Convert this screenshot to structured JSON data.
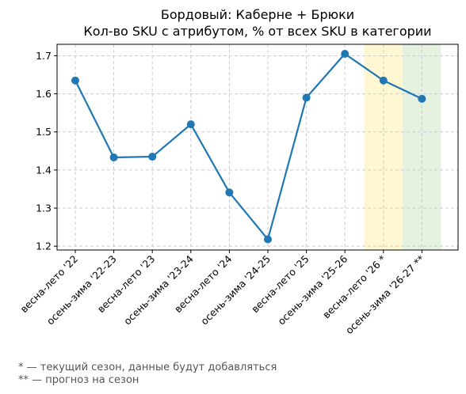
{
  "chart_data": {
    "type": "line",
    "title": "Бордовый: Каберне + Брюки",
    "subtitle": "Кол-во SKU с атрибутом, % от всех SKU в категории",
    "xlabel": "",
    "ylabel": "",
    "categories": [
      "весна-лето '22",
      "осень-зима '22-23",
      "весна-лето '23",
      "осень-зима '23-24",
      "весна-лето '24",
      "осень-зима '24-25",
      "весна-лето '25",
      "осень-зима '25-26",
      "весна-лето '26 *",
      "осень-зима '26-27 **"
    ],
    "series": [
      {
        "values": [
          1.635,
          1.433,
          1.435,
          1.52,
          1.341,
          1.218,
          1.59,
          1.705,
          1.635,
          1.587
        ]
      }
    ],
    "ylim": [
      1.19,
      1.73
    ],
    "yticks": [
      1.2,
      1.3,
      1.4,
      1.5,
      1.6,
      1.7
    ],
    "ytick_labels": [
      "1.2",
      "1.3",
      "1.4",
      "1.5",
      "1.6",
      "1.7"
    ],
    "grid": true,
    "highlights": [
      {
        "category_index": 8,
        "color": "#fff7d1",
        "meaning": "current season"
      },
      {
        "category_index": 9,
        "color": "#e5f2e0",
        "meaning": "forecast"
      }
    ],
    "line_color": "#1f77b4"
  },
  "footnotes": [
    "* — текущий сезон, данные будут добавляться",
    "** — прогноз на сезон"
  ]
}
